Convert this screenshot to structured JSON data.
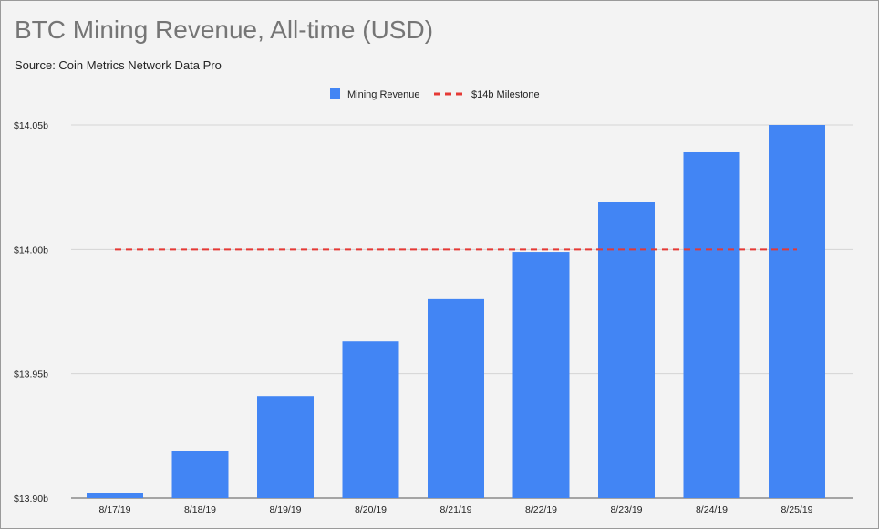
{
  "chart_data": {
    "type": "bar",
    "title": "BTC Mining Revenue, All-time (USD)",
    "subtitle": "Source: Coin Metrics Network Data Pro",
    "xlabel": "",
    "ylabel": "",
    "categories": [
      "8/17/19",
      "8/18/19",
      "8/19/19",
      "8/20/19",
      "8/21/19",
      "8/22/19",
      "8/23/19",
      "8/24/19",
      "8/25/19"
    ],
    "series": [
      {
        "name": "Mining Revenue",
        "color": "#4285f4",
        "values": [
          13.902,
          13.919,
          13.941,
          13.963,
          13.98,
          13.999,
          14.019,
          14.039,
          14.05
        ]
      }
    ],
    "reference_lines": [
      {
        "name": "$14b Milestone",
        "value": 14.0,
        "color": "#e53935",
        "style": "dashed",
        "from_category": "8/17/19",
        "to_category": "8/25/19"
      }
    ],
    "ylim": [
      13.9,
      14.05
    ],
    "yticks": [
      {
        "value": 13.9,
        "label": "$13.90b"
      },
      {
        "value": 13.95,
        "label": "$13.95b"
      },
      {
        "value": 14.0,
        "label": "$14.00b"
      },
      {
        "value": 14.05,
        "label": "$14.05b"
      }
    ],
    "grid": true,
    "legend_position": "top-center"
  }
}
